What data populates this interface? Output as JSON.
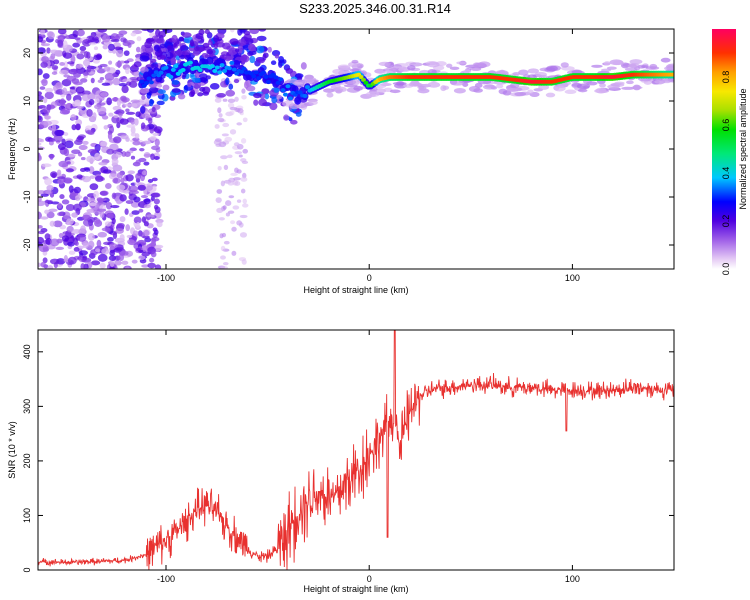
{
  "title": "S233.2025.346.00.31.R14",
  "colorbar": {
    "label": "Normalized spectral amplitude",
    "ticks": [
      0.0,
      0.2,
      0.4,
      0.6,
      0.8
    ],
    "range": [
      0,
      1
    ]
  },
  "chart_data": [
    {
      "type": "heatmap",
      "xlabel": "Height of straight line (km)",
      "ylabel": "Frequency (Hz)",
      "xlim": [
        -163,
        150
      ],
      "ylim": [
        -25,
        25
      ],
      "xticks": [
        -100,
        0,
        100
      ],
      "yticks": [
        -20,
        -10,
        0,
        10,
        20
      ],
      "ridge": {
        "description_values": "dominant frequency ridge (Hz) vs height (km)",
        "x": [
          -110,
          -100,
          -90,
          -80,
          -70,
          -60,
          -50,
          -45,
          -40,
          -35,
          -30,
          -25,
          -20,
          -15,
          -10,
          -5,
          0,
          5,
          10,
          20,
          30,
          40,
          50,
          60,
          70,
          80,
          90,
          100,
          110,
          120,
          130,
          140,
          150
        ],
        "y": [
          14,
          16,
          17,
          17.5,
          17,
          16,
          15,
          14,
          12,
          11,
          12,
          13,
          14,
          14.5,
          15,
          15.5,
          13,
          14.5,
          15,
          15,
          15,
          15,
          15,
          15,
          14.5,
          14,
          14,
          15,
          15,
          15,
          15.5,
          15.5,
          15.5
        ],
        "amplitude": [
          0.3,
          0.35,
          0.4,
          0.4,
          0.35,
          0.3,
          0.3,
          0.3,
          0.35,
          0.3,
          0.35,
          0.45,
          0.55,
          0.6,
          0.65,
          0.75,
          0.5,
          0.8,
          0.85,
          0.9,
          0.9,
          0.9,
          0.9,
          0.9,
          0.9,
          0.95,
          0.9,
          0.9,
          0.9,
          0.95,
          0.9,
          0.85,
          0.8
        ]
      }
    },
    {
      "type": "line",
      "xlabel": "Height of straight line (km)",
      "ylabel": "SNR (10 * v/v)",
      "xlim": [
        -163,
        150
      ],
      "ylim": [
        0,
        440
      ],
      "xticks": [
        -100,
        0,
        100
      ],
      "yticks": [
        0,
        100,
        200,
        300,
        400
      ],
      "color": "#e8312f",
      "series": [
        {
          "x": [
            -163,
            -150,
            -140,
            -130,
            -120,
            -110,
            -100,
            -95,
            -90,
            -85,
            -80,
            -75,
            -70,
            -65,
            -60,
            -55,
            -50,
            -45,
            -40,
            -35,
            -30,
            -25,
            -20,
            -15,
            -10,
            -5,
            0,
            5,
            10,
            13,
            15,
            20,
            25,
            30,
            40,
            50,
            60,
            70,
            80,
            90,
            100,
            110,
            120,
            130,
            140,
            150
          ],
          "y": [
            15,
            14,
            15,
            16,
            18,
            28,
            55,
            70,
            90,
            110,
            120,
            105,
            80,
            60,
            40,
            25,
            25,
            40,
            70,
            110,
            130,
            145,
            130,
            140,
            165,
            185,
            210,
            240,
            270,
            285,
            220,
            290,
            320,
            330,
            335,
            340,
            340,
            335,
            335,
            330,
            330,
            328,
            330,
            335,
            332,
            330
          ]
        }
      ]
    }
  ]
}
